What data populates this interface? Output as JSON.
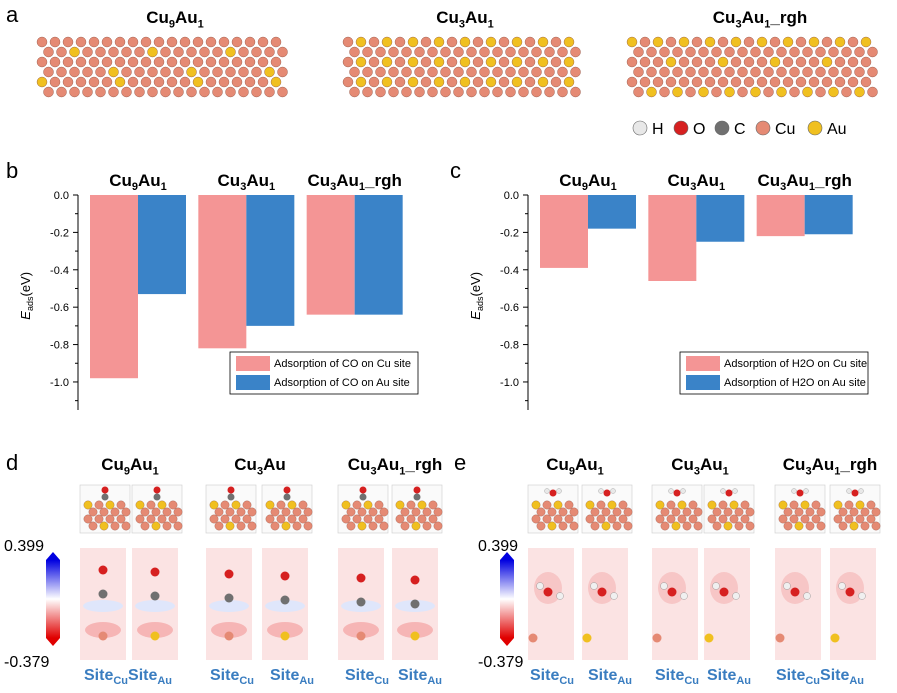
{
  "panel_a": {
    "label": "a",
    "titles": [
      {
        "base": "Cu",
        "s1": "9",
        "mid": "Au",
        "s2": "1",
        "suffix": ""
      },
      {
        "base": "Cu",
        "s1": "3",
        "mid": "Au",
        "s2": "1",
        "suffix": ""
      },
      {
        "base": "Cu",
        "s1": "3",
        "mid": "Au",
        "s2": "1",
        "suffix": "_rgh"
      }
    ],
    "legend": [
      {
        "symbol": "H",
        "color": "#e8e8e8"
      },
      {
        "symbol": "O",
        "color": "#d62020"
      },
      {
        "symbol": "C",
        "color": "#707070"
      },
      {
        "symbol": "Cu",
        "color": "#e58a74"
      },
      {
        "symbol": "Au",
        "color": "#f0c020"
      }
    ]
  },
  "panel_d": {
    "label": "d",
    "titles": [
      {
        "base": "Cu",
        "s1": "9",
        "mid": "Au",
        "s2": "1",
        "suffix": ""
      },
      {
        "base": "Cu",
        "s1": "3",
        "mid": "Au",
        "s2": "",
        "suffix": ""
      },
      {
        "base": "Cu",
        "s1": "3",
        "mid": "Au",
        "s2": "1",
        "suffix": "_rgh"
      }
    ],
    "colorbar_max": "0.399",
    "colorbar_min": "-0.379",
    "site_label": "Site",
    "site_cu": "Cu",
    "site_au": "Au"
  },
  "panel_e": {
    "label": "e",
    "titles": [
      {
        "base": "Cu",
        "s1": "9",
        "mid": "Au",
        "s2": "1",
        "suffix": ""
      },
      {
        "base": "Cu",
        "s1": "3",
        "mid": "Au",
        "s2": "1",
        "suffix": ""
      },
      {
        "base": "Cu",
        "s1": "3",
        "mid": "Au",
        "s2": "1",
        "suffix": "_rgh"
      }
    ],
    "colorbar_max": "0.399",
    "colorbar_min": "-0.379",
    "site_label": "Site",
    "site_cu": "Cu",
    "site_au": "Au"
  },
  "chart_data": [
    {
      "panel": "b",
      "type": "bar",
      "categories": [
        "Cu9Au1",
        "Cu3Au1",
        "Cu3Au1_rgh"
      ],
      "series": [
        {
          "name": "Adsorption of CO on Cu site",
          "color": "#f49595",
          "values": [
            -0.98,
            -0.82,
            -0.64
          ]
        },
        {
          "name": "Adsorption of CO on Au site",
          "color": "#3a83c8",
          "values": [
            -0.53,
            -0.7,
            -0.64
          ]
        }
      ],
      "ylabel_main": "E",
      "ylabel_sub": "ads",
      "ylabel_unit": "(eV)",
      "ylim": [
        -1.15,
        0.0
      ],
      "yticks": [
        0.0,
        -0.2,
        -0.4,
        -0.6,
        -0.8,
        -1.0
      ],
      "ytick_labels": [
        "0.0",
        "-0.2",
        "-0.4",
        "-0.6",
        "-0.8",
        "-1.0"
      ]
    },
    {
      "panel": "c",
      "type": "bar",
      "categories": [
        "Cu9Au1",
        "Cu3Au1",
        "Cu3Au1_rgh"
      ],
      "series": [
        {
          "name": "Adsorption of H2O on Cu site",
          "color": "#f49595",
          "values": [
            -0.39,
            -0.46,
            -0.22
          ]
        },
        {
          "name": "Adsorption of H2O on Au site",
          "color": "#3a83c8",
          "values": [
            -0.18,
            -0.25,
            -0.21
          ]
        }
      ],
      "ylabel_main": "E",
      "ylabel_sub": "ads",
      "ylabel_unit": "(eV)",
      "ylim": [
        -1.15,
        0.0
      ],
      "yticks": [
        0.0,
        -0.2,
        -0.4,
        -0.6,
        -0.8,
        -1.0
      ],
      "ytick_labels": [
        "0.0",
        "-0.2",
        "-0.4",
        "-0.6",
        "-0.8",
        "-1.0"
      ]
    }
  ]
}
